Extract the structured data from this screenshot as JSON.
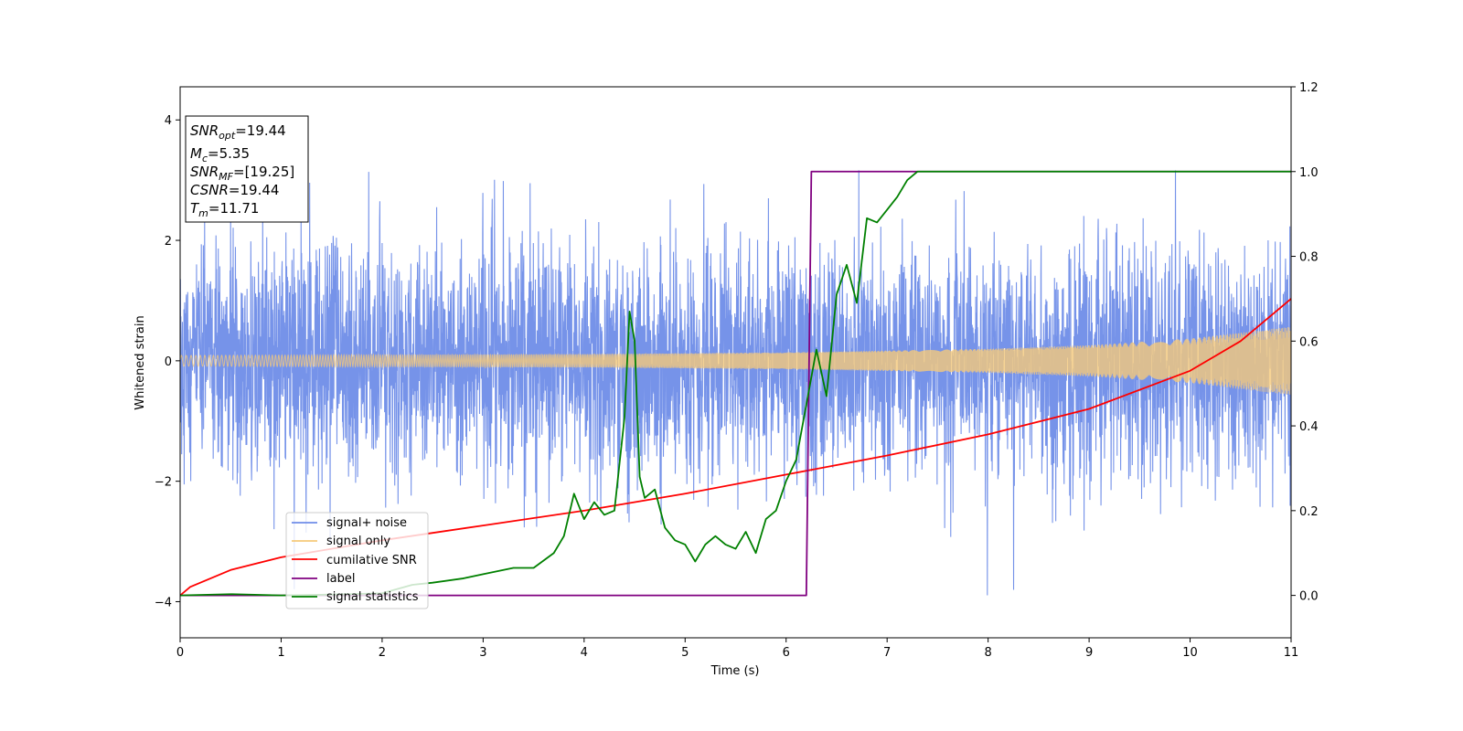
{
  "chart_data": {
    "type": "line",
    "title": "",
    "xlabel": "Time (s)",
    "ylabel": "Whitened strain",
    "xlim": [
      0,
      11
    ],
    "ylim_left": [
      -4.6,
      4.55
    ],
    "ylim_right": [
      -0.1,
      1.2
    ],
    "x_ticks": [
      0,
      1,
      2,
      3,
      4,
      5,
      6,
      7,
      8,
      9,
      10,
      11
    ],
    "y_left_ticks": [
      -4,
      -2,
      0,
      2,
      4
    ],
    "y_right_ticks": [
      "0.0",
      "0.2",
      "0.4",
      "0.6",
      "0.8",
      "1.0",
      "1.2"
    ],
    "legend": {
      "position": "lower-left",
      "entries": [
        {
          "label": "signal+ noise",
          "color": "#6f8de8"
        },
        {
          "label": "signal only",
          "color": "#f5c97a"
        },
        {
          "label": "cumilative SNR",
          "color": "#ff0000"
        },
        {
          "label": "label",
          "color": "#800080"
        },
        {
          "label": "signal statistics",
          "color": "#008000"
        }
      ]
    },
    "info_box": {
      "snr_opt_base": "SNR",
      "snr_opt_sub": "opt",
      "snr_opt_value": "=19.44",
      "mc_base": "M",
      "mc_sub": "c",
      "mc_value": "=5.35",
      "snr_mf_base": "SNR",
      "snr_mf_sub": "MF",
      "snr_mf_value": "=[19.25]",
      "csnr_base": "CSNR",
      "csnr_value": "=19.44",
      "tm_base": "T",
      "tm_sub": "m",
      "tm_value": "=11.71"
    },
    "series": [
      {
        "name": "signal+ noise",
        "axis": "left",
        "color": "#6f8de8",
        "description_values": {
          "approx_band": [
            -2.5,
            2.5
          ],
          "max_spikes": [
            4.1,
            -4.0
          ]
        }
      },
      {
        "name": "signal only",
        "axis": "left",
        "color": "#f5c97a",
        "envelope": {
          "x": [
            0,
            2,
            4,
            6,
            8,
            9,
            10,
            11
          ],
          "amp": [
            0.09,
            0.1,
            0.11,
            0.14,
            0.2,
            0.26,
            0.37,
            0.57
          ]
        }
      },
      {
        "name": "cumilative SNR",
        "axis": "right",
        "color": "#ff0000",
        "x": [
          0,
          0.1,
          0.5,
          1,
          2,
          3,
          4,
          5,
          6,
          7,
          8,
          9,
          10,
          10.5,
          11
        ],
        "y": [
          0.0,
          0.02,
          0.06,
          0.09,
          0.13,
          0.165,
          0.2,
          0.24,
          0.285,
          0.33,
          0.38,
          0.44,
          0.53,
          0.6,
          0.7
        ]
      },
      {
        "name": "label",
        "axis": "right",
        "color": "#800080",
        "x": [
          0,
          6.2,
          6.25,
          11
        ],
        "y": [
          0,
          0,
          1,
          1
        ]
      },
      {
        "name": "signal statistics",
        "axis": "right",
        "color": "#008000",
        "x": [
          0,
          0.5,
          1,
          1.5,
          2,
          2.3,
          2.5,
          2.8,
          3.0,
          3.3,
          3.5,
          3.7,
          3.8,
          3.9,
          4.0,
          4.1,
          4.2,
          4.3,
          4.4,
          4.45,
          4.5,
          4.55,
          4.6,
          4.7,
          4.8,
          4.9,
          5.0,
          5.1,
          5.2,
          5.3,
          5.4,
          5.5,
          5.6,
          5.7,
          5.8,
          5.9,
          6.0,
          6.1,
          6.2,
          6.3,
          6.4,
          6.5,
          6.6,
          6.7,
          6.8,
          6.9,
          7.0,
          7.1,
          7.2,
          7.3,
          7.4,
          7.6,
          7.8,
          8.0,
          9.0,
          10.0,
          11.0
        ],
        "y": [
          0.0,
          0.003,
          0.0,
          0.002,
          0.005,
          0.025,
          0.03,
          0.04,
          0.05,
          0.065,
          0.065,
          0.1,
          0.14,
          0.24,
          0.18,
          0.22,
          0.19,
          0.2,
          0.42,
          0.67,
          0.6,
          0.28,
          0.23,
          0.25,
          0.16,
          0.13,
          0.12,
          0.08,
          0.12,
          0.14,
          0.12,
          0.11,
          0.15,
          0.1,
          0.18,
          0.2,
          0.27,
          0.32,
          0.45,
          0.58,
          0.47,
          0.71,
          0.78,
          0.69,
          0.89,
          0.88,
          0.91,
          0.94,
          0.98,
          1.0,
          1.0,
          1.0,
          1.0,
          1.0,
          1.0,
          1.0,
          1.0
        ]
      }
    ]
  }
}
